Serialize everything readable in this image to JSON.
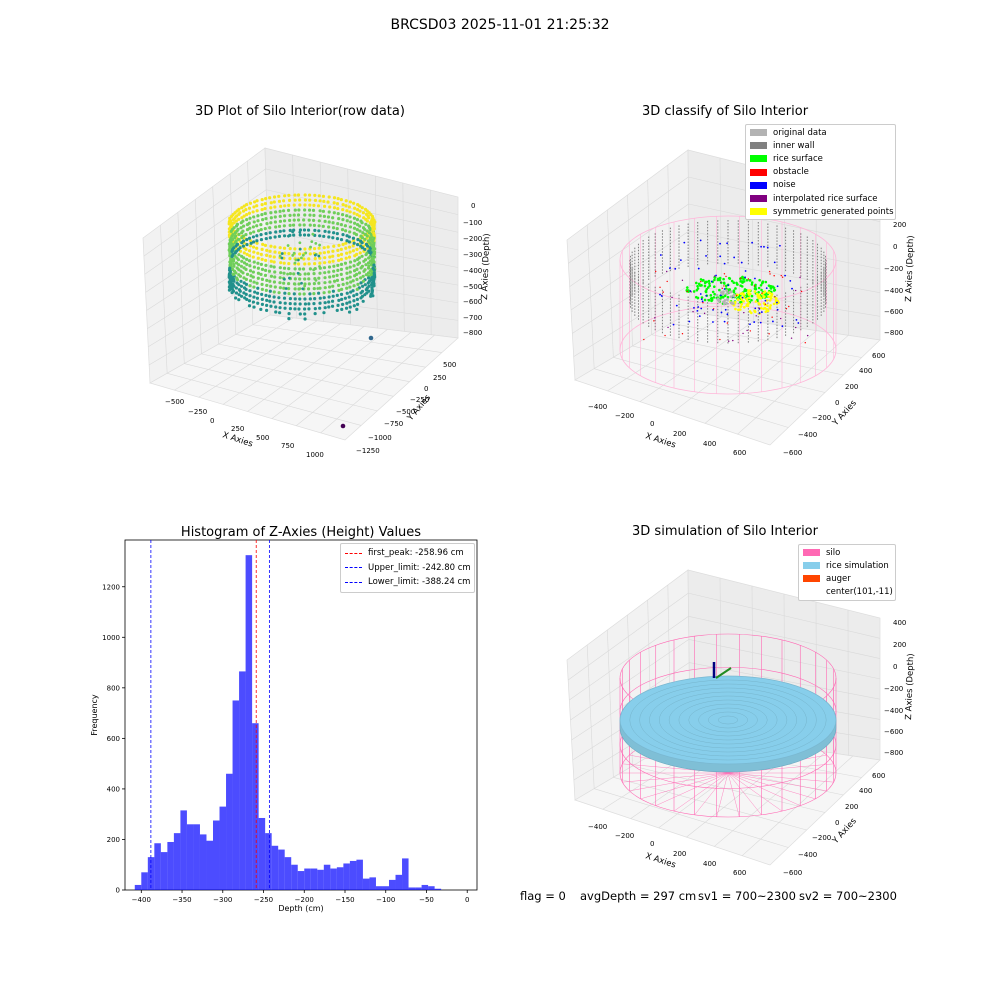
{
  "figure": {
    "suptitle": "BRCSD03 2025-11-01 21:25:32",
    "footer": {
      "flag": "flag = 0",
      "avg_depth": "avgDepth = 297 cm",
      "sv1": "sv1 = 700~2300",
      "sv2": "sv2 = 700~2300"
    }
  },
  "panel_raw": {
    "title": "3D Plot of Silo Interior(row data)",
    "x_label": "X Axies",
    "y_label": "Y Axies",
    "z_label": "Z Axies (Depth)",
    "x_ticks": [
      "−500",
      "−250",
      "0",
      "250",
      "500",
      "750",
      "1000"
    ],
    "y_ticks": [
      "500",
      "250",
      "0",
      "−250",
      "−500",
      "−750",
      "−1000",
      "−1250"
    ],
    "z_ticks": [
      "0",
      "−100",
      "−200",
      "−300",
      "−400",
      "−500",
      "−600",
      "−700",
      "−800"
    ],
    "colors": {
      "high": "#f5e61f",
      "mid": "#6fce5a",
      "low": "#21918c",
      "outlier_a": "#31688e",
      "outlier_b": "#440154"
    }
  },
  "panel_classify": {
    "title": "3D classify of Silo Interior",
    "z_label": "Z Axies (Depth)",
    "x_label": "X Axies",
    "y_label": "Y Axies",
    "x_ticks": [
      "−400",
      "−200",
      "0",
      "200",
      "400",
      "600"
    ],
    "y_ticks": [
      "600",
      "400",
      "200",
      "0",
      "−200",
      "−400",
      "−600"
    ],
    "z_ticks": [
      "200",
      "0",
      "−200",
      "−400",
      "−600",
      "−800"
    ],
    "legend": [
      {
        "label": "original data",
        "color": "#b3b3b3"
      },
      {
        "label": "inner wall",
        "color": "#808080"
      },
      {
        "label": "rice surface",
        "color": "#00ff00"
      },
      {
        "label": "obstacle",
        "color": "#ff0000"
      },
      {
        "label": "noise",
        "color": "#0000ff"
      },
      {
        "label": "interpolated rice surface",
        "color": "#800080"
      },
      {
        "label": "symmetric generated points",
        "color": "#ffff00"
      }
    ]
  },
  "panel_sim": {
    "title": "3D simulation of Silo Interior",
    "z_label": "Z Axies (Depth)",
    "x_label": "X Axies",
    "y_label": "Y Axies",
    "x_ticks": [
      "−400",
      "−200",
      "0",
      "200",
      "400",
      "600"
    ],
    "y_ticks": [
      "600",
      "400",
      "200",
      "0",
      "−200",
      "−400",
      "−600"
    ],
    "z_ticks": [
      "400",
      "200",
      "0",
      "−200",
      "−400",
      "−600",
      "−800"
    ],
    "legend": [
      {
        "label": "silo",
        "color": "#ff69b4"
      },
      {
        "label": "rice simulation",
        "color": "#87ceeb"
      },
      {
        "label": "auger",
        "color": "#ff4500"
      },
      {
        "label": "center(101,-11)",
        "color": ""
      }
    ]
  },
  "chart_data": {
    "type": "bar",
    "title": "Histogram of Z-Axies (Height) Values",
    "xlabel": "Depth (cm)",
    "ylabel": "Frequency",
    "xlim": [
      -420,
      12
    ],
    "ylim": [
      0,
      1385
    ],
    "x_ticks": [
      -400,
      -350,
      -300,
      -250,
      -200,
      -150,
      -100,
      -50,
      0
    ],
    "y_ticks": [
      0,
      200,
      400,
      600,
      800,
      1000,
      1200
    ],
    "bar_color": "#0000ff",
    "bin_width": 8,
    "bin_start": -408,
    "values": [
      20,
      70,
      130,
      185,
      150,
      190,
      225,
      315,
      260,
      260,
      220,
      195,
      275,
      330,
      460,
      750,
      865,
      1325,
      660,
      285,
      225,
      175,
      160,
      130,
      100,
      75,
      85,
      85,
      80,
      100,
      85,
      90,
      105,
      115,
      120,
      45,
      50,
      15,
      15,
      40,
      60,
      125,
      10,
      10,
      20,
      15,
      5
    ],
    "vlines": [
      {
        "label": "first_peak: -258.96 cm",
        "x": -258.96,
        "color": "#ff0000"
      },
      {
        "label": "Upper_limit: -242.80 cm",
        "x": -242.8,
        "color": "#0000ff"
      },
      {
        "label": "Lower_limit: -388.24 cm",
        "x": -388.24,
        "color": "#0000ff"
      }
    ],
    "legend_position": "upper right"
  }
}
